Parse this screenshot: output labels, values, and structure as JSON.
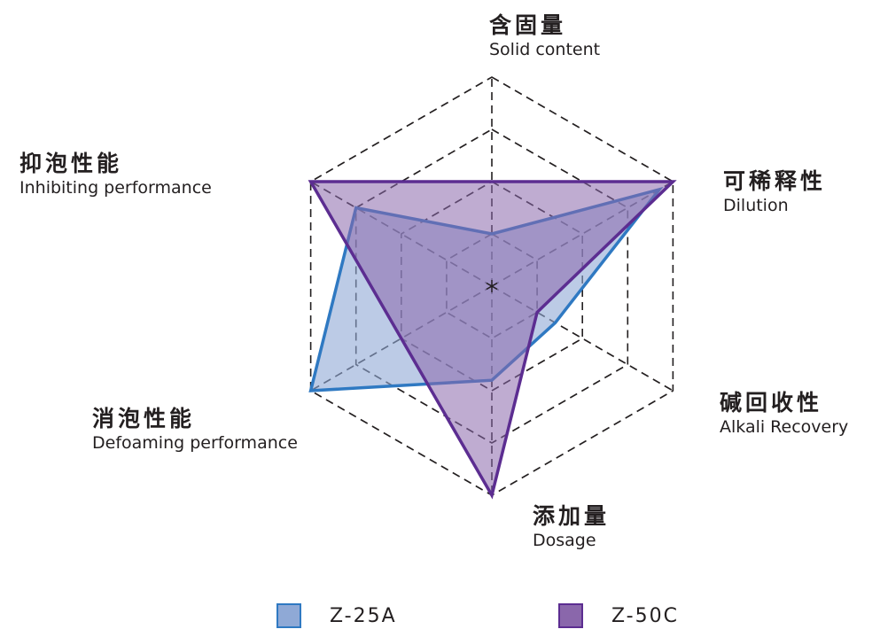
{
  "chart_data": {
    "type": "radar",
    "axes": [
      {
        "zh": "含固量",
        "en": "Solid content"
      },
      {
        "zh": "可稀释性",
        "en": "Dilution"
      },
      {
        "zh": "碱回收性",
        "en": "Alkali Recovery"
      },
      {
        "zh": "添加量",
        "en": "Dosage"
      },
      {
        "zh": "消泡性能",
        "en": "Defoaming performance"
      },
      {
        "zh": "抑泡性能",
        "en": "Inhibiting performance"
      }
    ],
    "max": 4,
    "rings": 4,
    "grid": true,
    "legend_position": "bottom",
    "series": [
      {
        "name": "Z-25A",
        "values": [
          1.0,
          3.7,
          1.4,
          1.8,
          4.0,
          3.0
        ],
        "stroke": "#2f79c2",
        "fill": "#8fa9d6",
        "fill_opacity": 0.6
      },
      {
        "name": "Z-50C",
        "values": [
          2.0,
          4.0,
          1.0,
          4.0,
          2.0,
          4.0
        ],
        "stroke": "#5c2d91",
        "fill": "#8a67ab",
        "fill_opacity": 0.55
      }
    ]
  }
}
